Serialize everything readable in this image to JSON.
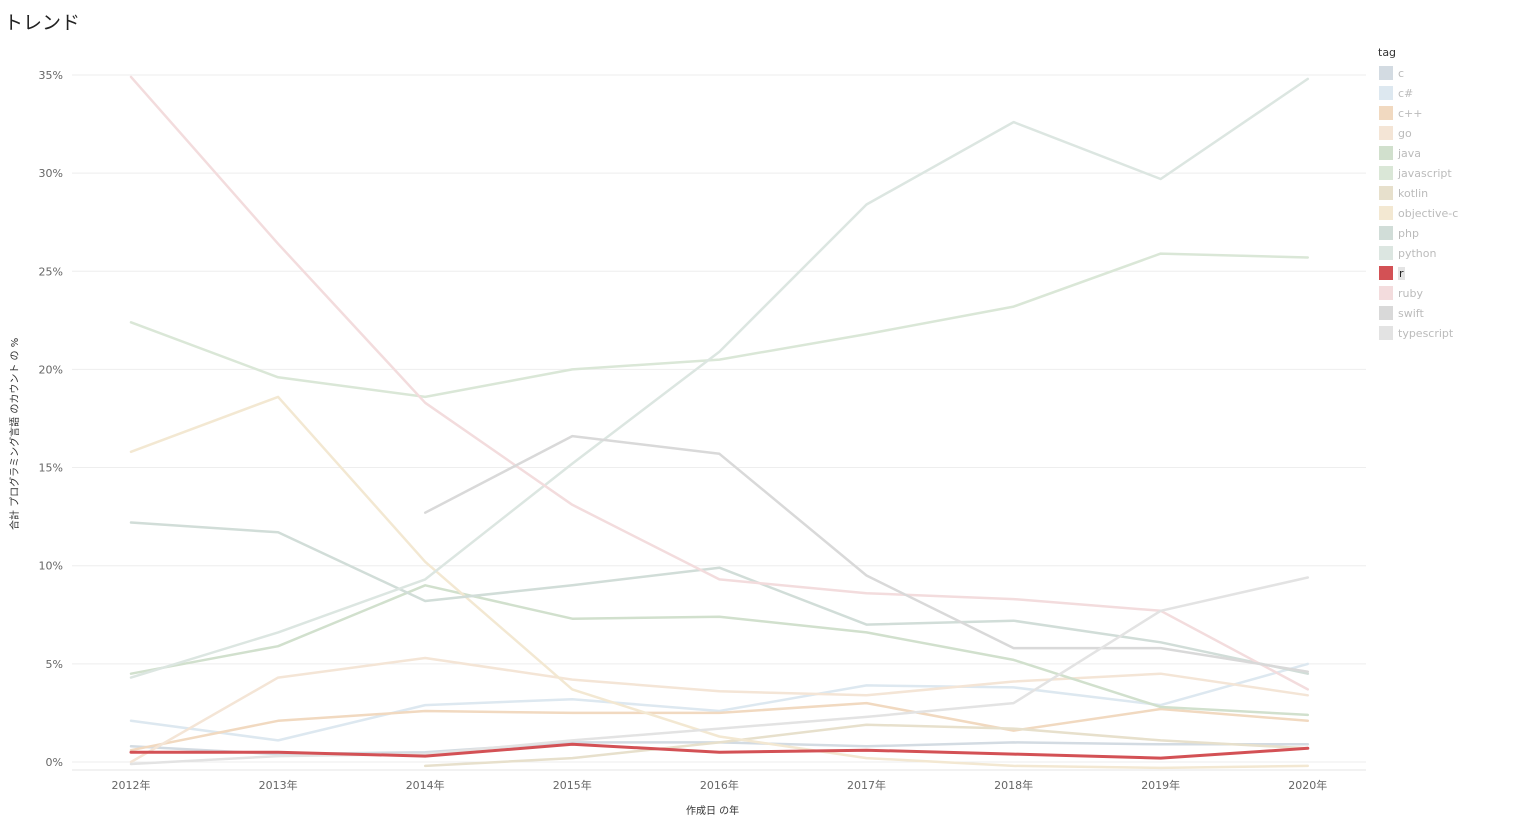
{
  "title": "トレンド",
  "chart_data": {
    "type": "line",
    "title": "トレンド",
    "xlabel": "作成日 の年",
    "ylabel": "合計 プログラミング言語 のカウント の %",
    "x": [
      "2012年",
      "2013年",
      "2014年",
      "2015年",
      "2016年",
      "2017年",
      "2018年",
      "2019年",
      "2020年"
    ],
    "y_ticks": [
      "0%",
      "5%",
      "10%",
      "15%",
      "20%",
      "25%",
      "30%",
      "35%"
    ],
    "ylim": [
      0,
      35
    ],
    "grid": "horizontal",
    "legend_title": "tag",
    "legend_position": "right",
    "highlighted": "r",
    "series": [
      {
        "name": "c",
        "color": "#d3dbe2",
        "values": [
          0.8,
          0.4,
          0.5,
          1.0,
          1.0,
          0.8,
          1.0,
          0.9,
          0.9
        ]
      },
      {
        "name": "c#",
        "color": "#dde8f0",
        "values": [
          2.1,
          1.1,
          2.9,
          3.2,
          2.6,
          3.9,
          3.8,
          2.9,
          5.0
        ]
      },
      {
        "name": "c++",
        "color": "#f1d9c0",
        "values": [
          0.6,
          2.1,
          2.6,
          2.5,
          2.5,
          3.0,
          1.6,
          2.7,
          2.1
        ]
      },
      {
        "name": "go",
        "color": "#f4e5d6",
        "values": [
          0.0,
          4.3,
          5.3,
          4.2,
          3.6,
          3.4,
          4.1,
          4.5,
          3.4
        ]
      },
      {
        "name": "java",
        "color": "#d1e0cd",
        "values": [
          4.5,
          5.9,
          9.0,
          7.3,
          7.4,
          6.6,
          5.2,
          2.8,
          2.4
        ]
      },
      {
        "name": "javascript",
        "color": "#dae7d7",
        "values": [
          22.4,
          19.6,
          18.6,
          20.0,
          20.5,
          21.8,
          23.2,
          25.9,
          25.7
        ]
      },
      {
        "name": "kotlin",
        "color": "#e7e0cc",
        "values": [
          null,
          null,
          -0.2,
          0.2,
          1.0,
          1.9,
          1.7,
          1.1,
          0.7
        ]
      },
      {
        "name": "objective-c",
        "color": "#f3e8d2",
        "values": [
          15.8,
          18.6,
          10.2,
          3.7,
          1.3,
          0.2,
          -0.2,
          -0.3,
          -0.2
        ]
      },
      {
        "name": "php",
        "color": "#d1ddd8",
        "values": [
          12.2,
          11.7,
          8.2,
          9.0,
          9.9,
          7.0,
          7.2,
          6.1,
          4.5
        ]
      },
      {
        "name": "python",
        "color": "#dce6e1",
        "values": [
          4.3,
          6.6,
          9.3,
          15.2,
          20.9,
          28.4,
          32.6,
          29.7,
          34.8
        ]
      },
      {
        "name": "r",
        "color": "#d35155",
        "values": [
          0.5,
          0.5,
          0.3,
          0.9,
          0.5,
          0.6,
          0.4,
          0.2,
          0.7
        ]
      },
      {
        "name": "ruby",
        "color": "#f3dcdd",
        "values": [
          34.9,
          26.4,
          18.3,
          13.1,
          9.3,
          8.6,
          8.3,
          7.7,
          3.7
        ]
      },
      {
        "name": "swift",
        "color": "#d9d9d9",
        "values": [
          null,
          null,
          12.7,
          16.6,
          15.7,
          9.5,
          5.8,
          5.8,
          4.6
        ]
      },
      {
        "name": "typescript",
        "color": "#e3e3e3",
        "values": [
          -0.1,
          0.3,
          0.4,
          1.1,
          1.7,
          2.3,
          3.0,
          7.7,
          9.4
        ]
      }
    ]
  }
}
